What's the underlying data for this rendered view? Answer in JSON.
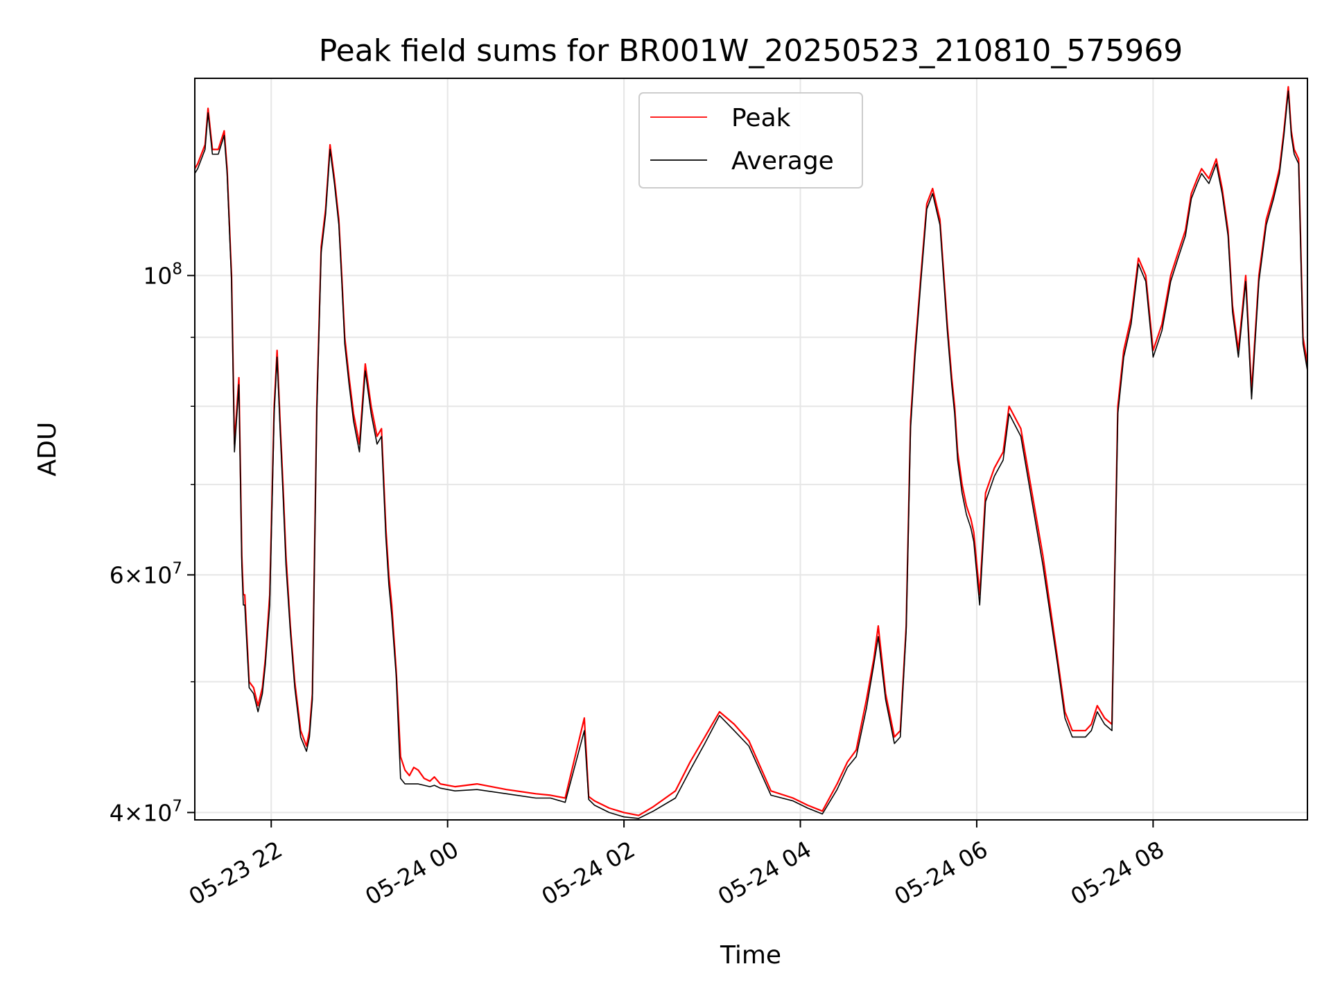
{
  "chart_data": {
    "type": "line",
    "title": "Peak field sums for BR001W_20250523_210810_575969",
    "xlabel": "Time",
    "ylabel": "ADU",
    "yscale": "log",
    "grid": true,
    "legend_position": "upper-center",
    "xlim": [
      "2025-05-23T21:08",
      "2025-05-24T09:45"
    ],
    "ylim": [
      39500000,
      140000000
    ],
    "x_ticks": [
      {
        "value": "2025-05-23T22:00",
        "label": "05-23 22"
      },
      {
        "value": "2025-05-24T00:00",
        "label": "05-24 00"
      },
      {
        "value": "2025-05-24T02:00",
        "label": "05-24 02"
      },
      {
        "value": "2025-05-24T04:00",
        "label": "05-24 04"
      },
      {
        "value": "2025-05-24T06:00",
        "label": "05-24 06"
      },
      {
        "value": "2025-05-24T08:00",
        "label": "05-24 08"
      }
    ],
    "y_ticks": [
      {
        "value": 40000000,
        "base": "4",
        "exp": "7",
        "mantissa": true
      },
      {
        "value": 60000000,
        "base": "6",
        "exp": "7",
        "mantissa": true
      },
      {
        "value": 100000000,
        "base": "10",
        "exp": "8",
        "mantissa": false
      }
    ],
    "y_minor_ticks": [
      50000000,
      70000000,
      80000000,
      90000000
    ],
    "x": [
      "2025-05-23T21:08",
      "2025-05-23T21:10",
      "2025-05-23T21:15",
      "2025-05-23T21:17",
      "2025-05-23T21:20",
      "2025-05-23T21:24",
      "2025-05-23T21:28",
      "2025-05-23T21:30",
      "2025-05-23T21:33",
      "2025-05-23T21:35",
      "2025-05-23T21:38",
      "2025-05-23T21:40",
      "2025-05-23T21:41",
      "2025-05-23T21:42",
      "2025-05-23T21:45",
      "2025-05-23T21:48",
      "2025-05-23T21:51",
      "2025-05-23T21:54",
      "2025-05-23T21:56",
      "2025-05-23T21:59",
      "2025-05-23T22:02",
      "2025-05-23T22:04",
      "2025-05-23T22:06",
      "2025-05-23T22:08",
      "2025-05-23T22:10",
      "2025-05-23T22:13",
      "2025-05-23T22:16",
      "2025-05-23T22:20",
      "2025-05-23T22:24",
      "2025-05-23T22:26",
      "2025-05-23T22:28",
      "2025-05-23T22:31",
      "2025-05-23T22:34",
      "2025-05-23T22:37",
      "2025-05-23T22:40",
      "2025-05-23T22:43",
      "2025-05-23T22:46",
      "2025-05-23T22:48",
      "2025-05-23T22:50",
      "2025-05-23T22:53",
      "2025-05-23T22:56",
      "2025-05-23T23:00",
      "2025-05-23T23:04",
      "2025-05-23T23:08",
      "2025-05-23T23:12",
      "2025-05-23T23:15",
      "2025-05-23T23:18",
      "2025-05-23T23:20",
      "2025-05-23T23:22",
      "2025-05-23T23:25",
      "2025-05-23T23:28",
      "2025-05-23T23:31",
      "2025-05-23T23:34",
      "2025-05-23T23:37",
      "2025-05-23T23:40",
      "2025-05-23T23:44",
      "2025-05-23T23:48",
      "2025-05-23T23:51",
      "2025-05-23T23:55",
      "2025-05-24T00:05",
      "2025-05-24T00:20",
      "2025-05-24T00:40",
      "2025-05-24T01:00",
      "2025-05-24T01:10",
      "2025-05-24T01:20",
      "2025-05-24T01:33",
      "2025-05-24T01:36",
      "2025-05-24T01:40",
      "2025-05-24T01:50",
      "2025-05-24T02:00",
      "2025-05-24T02:10",
      "2025-05-24T02:20",
      "2025-05-24T02:35",
      "2025-05-24T02:45",
      "2025-05-24T02:55",
      "2025-05-24T03:05",
      "2025-05-24T03:15",
      "2025-05-24T03:25",
      "2025-05-24T03:40",
      "2025-05-24T03:55",
      "2025-05-24T04:05",
      "2025-05-24T04:15",
      "2025-05-24T04:25",
      "2025-05-24T04:32",
      "2025-05-24T04:38",
      "2025-05-24T04:45",
      "2025-05-24T04:50",
      "2025-05-24T04:53",
      "2025-05-24T04:58",
      "2025-05-24T05:04",
      "2025-05-24T05:08",
      "2025-05-24T05:12",
      "2025-05-24T05:15",
      "2025-05-24T05:18",
      "2025-05-24T05:22",
      "2025-05-24T05:26",
      "2025-05-24T05:30",
      "2025-05-24T05:35",
      "2025-05-24T05:40",
      "2025-05-24T05:43",
      "2025-05-24T05:45",
      "2025-05-24T05:47",
      "2025-05-24T05:50",
      "2025-05-24T05:53",
      "2025-05-24T05:56",
      "2025-05-24T05:58",
      "2025-05-24T06:02",
      "2025-05-24T06:06",
      "2025-05-24T06:12",
      "2025-05-24T06:18",
      "2025-05-24T06:22",
      "2025-05-24T06:30",
      "2025-05-24T06:45",
      "2025-05-24T06:55",
      "2025-05-24T07:00",
      "2025-05-24T07:05",
      "2025-05-24T07:12",
      "2025-05-24T07:14",
      "2025-05-24T07:18",
      "2025-05-24T07:22",
      "2025-05-24T07:27",
      "2025-05-24T07:32",
      "2025-05-24T07:36",
      "2025-05-24T07:40",
      "2025-05-24T07:45",
      "2025-05-24T07:50",
      "2025-05-24T07:55",
      "2025-05-24T08:00",
      "2025-05-24T08:06",
      "2025-05-24T08:12",
      "2025-05-24T08:17",
      "2025-05-24T08:22",
      "2025-05-24T08:26",
      "2025-05-24T08:30",
      "2025-05-24T08:33",
      "2025-05-24T08:38",
      "2025-05-24T08:43",
      "2025-05-24T08:47",
      "2025-05-24T08:51",
      "2025-05-24T08:54",
      "2025-05-24T08:58",
      "2025-05-24T09:03",
      "2025-05-24T09:07",
      "2025-05-24T09:12",
      "2025-05-24T09:17",
      "2025-05-24T09:22",
      "2025-05-24T09:26",
      "2025-05-24T09:29",
      "2025-05-24T09:32",
      "2025-05-24T09:34",
      "2025-05-24T09:36",
      "2025-05-24T09:39",
      "2025-05-24T09:42",
      "2025-05-24T09:45"
    ],
    "series": [
      {
        "name": "Peak",
        "color": "#ff0000",
        "values": [
          120000000,
          121000000,
          125000000,
          133000000,
          124000000,
          124000000,
          128000000,
          120000000,
          100000000,
          75000000,
          84000000,
          62000000,
          58000000,
          58000000,
          50000000,
          49500000,
          48000000,
          49500000,
          52000000,
          58000000,
          80000000,
          88000000,
          78000000,
          70000000,
          62000000,
          55000000,
          50000000,
          46000000,
          44800000,
          46000000,
          49000000,
          80000000,
          105000000,
          112000000,
          125000000,
          118000000,
          110000000,
          100000000,
          90000000,
          84000000,
          79000000,
          75000000,
          86000000,
          80000000,
          76000000,
          77000000,
          65000000,
          60000000,
          57000000,
          51000000,
          44000000,
          43000000,
          42600000,
          43200000,
          43000000,
          42400000,
          42200000,
          42500000,
          42000000,
          41800000,
          42000000,
          41600000,
          41300000,
          41200000,
          41000000,
          47000000,
          41100000,
          40800000,
          40300000,
          40000000,
          39800000,
          40400000,
          41500000,
          43600000,
          45500000,
          47500000,
          46500000,
          45200000,
          41500000,
          41000000,
          40500000,
          40100000,
          42000000,
          43600000,
          44500000,
          48500000,
          52000000,
          55000000,
          49000000,
          45500000,
          46000000,
          55000000,
          78000000,
          88000000,
          100000000,
          113000000,
          116000000,
          110000000,
          92000000,
          84000000,
          80000000,
          74000000,
          70000000,
          67500000,
          66000000,
          64500000,
          58000000,
          69000000,
          72000000,
          74000000,
          80000000,
          77000000,
          62000000,
          52000000,
          47500000,
          46000000,
          46000000,
          46000000,
          46500000,
          48000000,
          47000000,
          46500000,
          80000000,
          88000000,
          93000000,
          103000000,
          100000000,
          88000000,
          92000000,
          100000000,
          104000000,
          108000000,
          115000000,
          118000000,
          120000000,
          118000000,
          122000000,
          116000000,
          108000000,
          95000000,
          88000000,
          100000000,
          82000000,
          100000000,
          110000000,
          115000000,
          120000000,
          128000000,
          138000000,
          128000000,
          124000000,
          122000000,
          90000000,
          86000000
        ]
      },
      {
        "name": "Average",
        "color": "#000000",
        "values": [
          119000000,
          120000000,
          124000000,
          132000000,
          123000000,
          123000000,
          127000000,
          119000000,
          99000000,
          74000000,
          83000000,
          61000000,
          57000000,
          57000000,
          49500000,
          49000000,
          47500000,
          49000000,
          51500000,
          57000000,
          79000000,
          87000000,
          77000000,
          69000000,
          61000000,
          54500000,
          49500000,
          45500000,
          44400000,
          45500000,
          48500000,
          79000000,
          104000000,
          111000000,
          124000000,
          117000000,
          109000000,
          99000000,
          89000000,
          83000000,
          78000000,
          74000000,
          85000000,
          79000000,
          75000000,
          76000000,
          64000000,
          59000000,
          56000000,
          50500000,
          42400000,
          42000000,
          42000000,
          42000000,
          42000000,
          41900000,
          41800000,
          41900000,
          41700000,
          41500000,
          41600000,
          41300000,
          41000000,
          41000000,
          40700000,
          46000000,
          40900000,
          40500000,
          40000000,
          39700000,
          39600000,
          40100000,
          41000000,
          43000000,
          45000000,
          47200000,
          46000000,
          44800000,
          41200000,
          40800000,
          40300000,
          39900000,
          41600000,
          43200000,
          44000000,
          47800000,
          51500000,
          54000000,
          48500000,
          45000000,
          45500000,
          54500000,
          77000000,
          87000000,
          99000000,
          112000000,
          115000000,
          109000000,
          91000000,
          83000000,
          79000000,
          73000000,
          69000000,
          66500000,
          65000000,
          63500000,
          57000000,
          68000000,
          71000000,
          73000000,
          79000000,
          76000000,
          61000000,
          51500000,
          47000000,
          45500000,
          45500000,
          45500000,
          46000000,
          47500000,
          46500000,
          46000000,
          79000000,
          87000000,
          92000000,
          102000000,
          99000000,
          87000000,
          91000000,
          99000000,
          103000000,
          107000000,
          114000000,
          117000000,
          119000000,
          117000000,
          121000000,
          115000000,
          107000000,
          94000000,
          87000000,
          99000000,
          81000000,
          99000000,
          109000000,
          114000000,
          119000000,
          127000000,
          137000000,
          127000000,
          123000000,
          121000000,
          89000000,
          85000000
        ]
      }
    ]
  }
}
